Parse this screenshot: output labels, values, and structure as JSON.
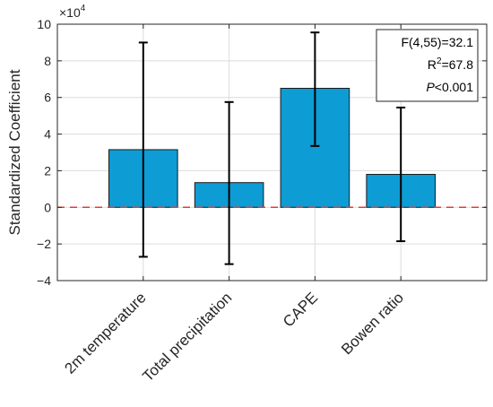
{
  "chart_data": {
    "type": "bar",
    "ylabel": "Standardized Coefficient",
    "yscale_label": "×10",
    "yscale_exponent": "4",
    "ylim": [
      -4,
      10
    ],
    "yticks": [
      "−4",
      "−2",
      "0",
      "2",
      "4",
      "6",
      "8",
      "10"
    ],
    "ytick_values": [
      -4,
      -2,
      0,
      2,
      4,
      6,
      8,
      10
    ],
    "grid": true,
    "categories": [
      "2m temperature",
      "Total precipitation",
      "CAPE",
      "Bowen ratio"
    ],
    "values": [
      3.15,
      1.35,
      6.5,
      1.8
    ],
    "error_upper": [
      9.0,
      5.75,
      9.55,
      5.45
    ],
    "error_lower": [
      -2.7,
      -3.1,
      3.35,
      -1.85
    ],
    "reference_line": 0,
    "x_range": [
      0,
      5
    ],
    "annotation": {
      "f_stat": "F(4,55)=32.1",
      "r_prefix": "R",
      "r_sup": "2",
      "r_value": "=67.8",
      "p_italic": "P",
      "p_value": "<0.001",
      "placement": "top-right"
    },
    "colors": {
      "bar": "#0E9CD4",
      "error_bar": "#000000",
      "reference": "#E83A35",
      "grid": "#DCDCDC",
      "axis": "#262626"
    }
  }
}
